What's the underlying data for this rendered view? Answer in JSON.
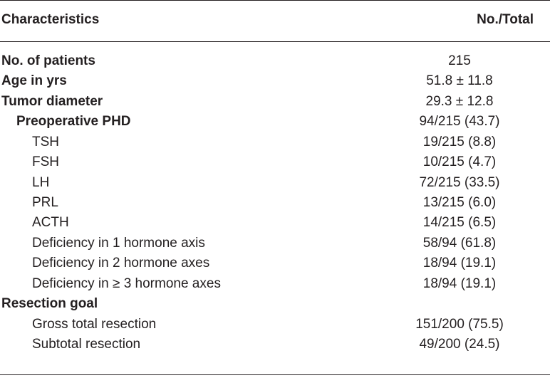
{
  "header": {
    "characteristics": "Characteristics",
    "no_total": "No./Total"
  },
  "rows": [
    {
      "label": "No. of patients",
      "value": "215"
    },
    {
      "label": "Age in yrs",
      "value": "51.8 ± 11.8"
    },
    {
      "label": "Tumor diameter",
      "value": "29.3 ± 12.8"
    },
    {
      "label": "Preoperative PHD",
      "value": "94/215 (43.7)"
    },
    {
      "label": "TSH",
      "value": "19/215 (8.8)"
    },
    {
      "label": "FSH",
      "value": "10/215 (4.7)"
    },
    {
      "label": "LH",
      "value": "72/215 (33.5)"
    },
    {
      "label": "PRL",
      "value": "13/215 (6.0)"
    },
    {
      "label": "ACTH",
      "value": "14/215 (6.5)"
    },
    {
      "label": "Deficiency in 1 hormone axis",
      "value": "58/94 (61.8)"
    },
    {
      "label": "Deficiency in 2 hormone axes",
      "value": "18/94 (19.1)"
    },
    {
      "label": "Deficiency in ≥ 3 hormone axes",
      "value": "18/94 (19.1)"
    },
    {
      "label": "Resection goal",
      "value": ""
    },
    {
      "label": "Gross total resection",
      "value": "151/200 (75.5)"
    },
    {
      "label": "Subtotal resection",
      "value": "49/200 (24.5)"
    }
  ]
}
